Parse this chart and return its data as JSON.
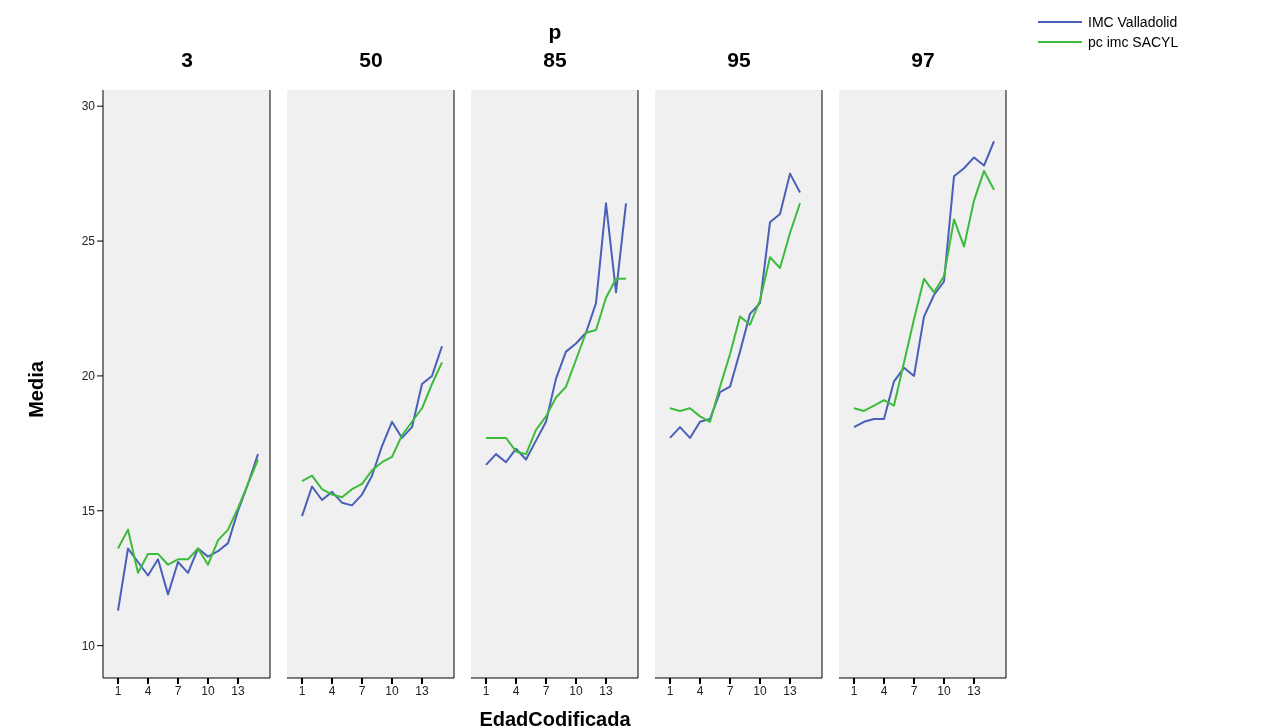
{
  "chart_data": [
    {
      "type": "line",
      "title": "3",
      "ylabel": "Media",
      "x": [
        1,
        2,
        3,
        4,
        5,
        6,
        7,
        8,
        9,
        10,
        11,
        12,
        13,
        14,
        15
      ],
      "xlim": [
        -0.5,
        16.2
      ],
      "xticks": [
        1,
        4,
        7,
        10,
        13
      ],
      "ylim": [
        8.8,
        30.6
      ],
      "yticks": [
        10,
        15,
        20,
        25,
        30
      ],
      "grid": false,
      "legend": false,
      "series": [
        {
          "color": "#4a5fb8",
          "values": [
            11.3,
            13.6,
            13.1,
            12.6,
            13.2,
            11.9,
            13.1,
            12.7,
            13.6,
            13.3,
            13.5,
            13.8,
            15.0,
            16.0,
            17.1
          ]
        },
        {
          "color": "#3dbb3d",
          "values": [
            13.6,
            14.3,
            12.7,
            13.4,
            13.4,
            13.0,
            13.2,
            13.2,
            13.6,
            13.0,
            13.9,
            14.3,
            15.1,
            16.0,
            16.9
          ]
        }
      ]
    },
    {
      "type": "line",
      "title": "50",
      "x": [
        1,
        2,
        3,
        4,
        5,
        6,
        7,
        8,
        9,
        10,
        11,
        12,
        13,
        14,
        15
      ],
      "xlim": [
        -0.5,
        16.2
      ],
      "xticks": [
        1,
        4,
        7,
        10,
        13
      ],
      "ylim": [
        8.8,
        30.6
      ],
      "yticks": [
        10,
        15,
        20,
        25,
        30
      ],
      "tick_labels": "x",
      "grid": false,
      "legend": false,
      "series": [
        {
          "color": "#4a5fb8",
          "values": [
            14.8,
            15.9,
            15.4,
            15.7,
            15.3,
            15.2,
            15.6,
            16.3,
            17.4,
            18.3,
            17.7,
            18.1,
            19.7,
            20.0,
            21.1
          ]
        },
        {
          "color": "#3dbb3d",
          "values": [
            16.1,
            16.3,
            15.8,
            15.6,
            15.5,
            15.8,
            16.0,
            16.5,
            16.8,
            17.0,
            17.8,
            18.3,
            18.8,
            19.7,
            20.5
          ]
        }
      ]
    },
    {
      "type": "line",
      "title": "85",
      "annotations": [
        "p"
      ],
      "xlabel": "EdadCodificada",
      "x": [
        1,
        2,
        3,
        4,
        5,
        6,
        7,
        8,
        9,
        10,
        11,
        12,
        13,
        14,
        15
      ],
      "xlim": [
        -0.5,
        16.2
      ],
      "xticks": [
        1,
        4,
        7,
        10,
        13
      ],
      "ylim": [
        8.8,
        30.6
      ],
      "yticks": [
        10,
        15,
        20,
        25,
        30
      ],
      "tick_labels": "x",
      "grid": false,
      "legend": false,
      "series": [
        {
          "color": "#4a5fb8",
          "values": [
            16.7,
            17.1,
            16.8,
            17.3,
            16.9,
            17.6,
            18.3,
            19.9,
            20.9,
            21.2,
            21.6,
            22.7,
            26.4,
            23.1,
            26.4
          ]
        },
        {
          "color": "#3dbb3d",
          "values": [
            17.7,
            17.7,
            17.7,
            17.2,
            17.1,
            18.0,
            18.5,
            19.2,
            19.6,
            20.6,
            21.6,
            21.7,
            22.9,
            23.6,
            23.6
          ]
        }
      ]
    },
    {
      "type": "line",
      "title": "95",
      "x": [
        1,
        2,
        3,
        4,
        5,
        6,
        7,
        8,
        9,
        10,
        11,
        12,
        13,
        14
      ],
      "xlim": [
        -0.5,
        16.2
      ],
      "xticks": [
        1,
        4,
        7,
        10,
        13
      ],
      "ylim": [
        8.8,
        30.6
      ],
      "yticks": [
        10,
        15,
        20,
        25,
        30
      ],
      "tick_labels": "x",
      "grid": false,
      "legend": false,
      "series": [
        {
          "color": "#4a5fb8",
          "values": [
            17.7,
            18.1,
            17.7,
            18.3,
            18.4,
            19.4,
            19.6,
            20.9,
            22.3,
            22.7,
            25.7,
            26.0,
            27.5,
            26.8
          ]
        },
        {
          "color": "#3dbb3d",
          "values": [
            18.8,
            18.7,
            18.8,
            18.5,
            18.3,
            19.6,
            20.8,
            22.2,
            21.9,
            22.8,
            24.4,
            24.0,
            25.3,
            26.4
          ]
        }
      ]
    },
    {
      "type": "line",
      "title": "97",
      "x": [
        1,
        2,
        3,
        4,
        5,
        6,
        7,
        8,
        9,
        10,
        11,
        12,
        13,
        14,
        15
      ],
      "xlim": [
        -0.5,
        16.2
      ],
      "xticks": [
        1,
        4,
        7,
        10,
        13
      ],
      "ylim": [
        8.8,
        30.6
      ],
      "yticks": [
        10,
        15,
        20,
        25,
        30
      ],
      "tick_labels": "x",
      "grid": false,
      "legend": "top right",
      "series": [
        {
          "name": "IMC Valladolid",
          "color": "#4a5fb8",
          "values": [
            18.1,
            18.3,
            18.4,
            18.4,
            19.8,
            20.3,
            20.0,
            22.2,
            23.0,
            23.5,
            27.4,
            27.7,
            28.1,
            27.8,
            28.7
          ]
        },
        {
          "name": "pc imc SACYL",
          "color": "#3dbb3d",
          "values": [
            18.8,
            18.7,
            18.9,
            19.1,
            18.9,
            20.5,
            22.1,
            23.6,
            23.1,
            23.7,
            25.8,
            24.8,
            26.5,
            27.6,
            26.9
          ]
        }
      ]
    }
  ]
}
